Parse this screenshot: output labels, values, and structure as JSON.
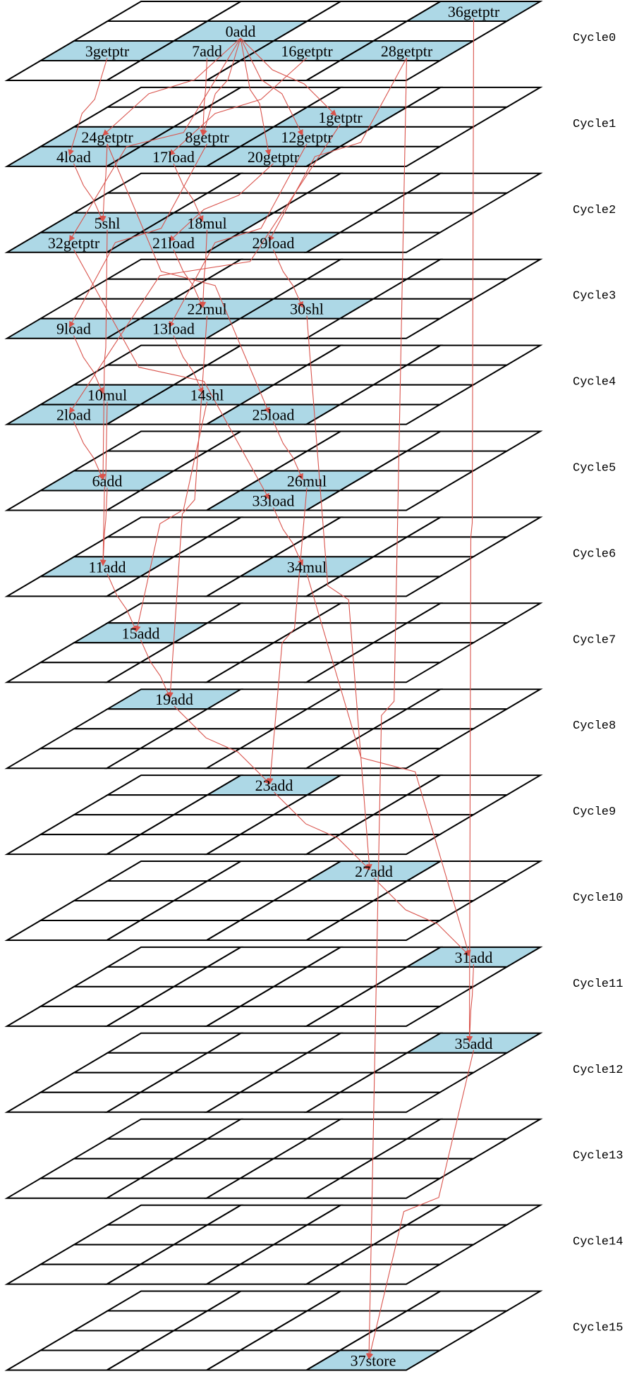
{
  "colors": {
    "occupied": "#add8e6",
    "edge": "#d9544d",
    "grid": "#000000"
  },
  "cycles": [
    {
      "label": "Cycle0",
      "ops": [
        {
          "r": 0,
          "c": 3,
          "label": "36getptr"
        },
        {
          "r": 1,
          "c": 1,
          "label": "0add"
        },
        {
          "r": 2,
          "c": 0,
          "label": "3getptr"
        },
        {
          "r": 2,
          "c": 1,
          "label": "7add"
        },
        {
          "r": 2,
          "c": 2,
          "label": "16getptr"
        },
        {
          "r": 2,
          "c": 3,
          "label": "28getptr"
        }
      ]
    },
    {
      "label": "Cycle1",
      "ops": [
        {
          "r": 1,
          "c": 2,
          "label": "1getptr"
        },
        {
          "r": 2,
          "c": 0,
          "label": "24getptr"
        },
        {
          "r": 2,
          "c": 1,
          "label": "8getptr"
        },
        {
          "r": 2,
          "c": 2,
          "label": "12getptr"
        },
        {
          "r": 3,
          "c": 0,
          "label": "4load"
        },
        {
          "r": 3,
          "c": 1,
          "label": "17load"
        },
        {
          "r": 3,
          "c": 2,
          "label": "20getptr"
        }
      ]
    },
    {
      "label": "Cycle2",
      "ops": [
        {
          "r": 2,
          "c": 0,
          "label": "5shl"
        },
        {
          "r": 2,
          "c": 1,
          "label": "18mul"
        },
        {
          "r": 3,
          "c": 0,
          "label": "32getptr"
        },
        {
          "r": 3,
          "c": 1,
          "label": "21load"
        },
        {
          "r": 3,
          "c": 2,
          "label": "29load"
        }
      ]
    },
    {
      "label": "Cycle3",
      "ops": [
        {
          "r": 2,
          "c": 1,
          "label": "22mul"
        },
        {
          "r": 2,
          "c": 2,
          "label": "30shl"
        },
        {
          "r": 3,
          "c": 0,
          "label": "9load"
        },
        {
          "r": 3,
          "c": 1,
          "label": "13load"
        }
      ]
    },
    {
      "label": "Cycle4",
      "ops": [
        {
          "r": 2,
          "c": 0,
          "label": "10mul"
        },
        {
          "r": 2,
          "c": 1,
          "label": "14shl"
        },
        {
          "r": 3,
          "c": 0,
          "label": "2load"
        },
        {
          "r": 3,
          "c": 2,
          "label": "25load"
        }
      ]
    },
    {
      "label": "Cycle5",
      "ops": [
        {
          "r": 2,
          "c": 0,
          "label": "6add"
        },
        {
          "r": 2,
          "c": 2,
          "label": "26mul"
        },
        {
          "r": 3,
          "c": 2,
          "label": "33load"
        }
      ]
    },
    {
      "label": "Cycle6",
      "ops": [
        {
          "r": 2,
          "c": 0,
          "label": "11add"
        },
        {
          "r": 2,
          "c": 2,
          "label": "34mul"
        }
      ]
    },
    {
      "label": "Cycle7",
      "ops": [
        {
          "r": 1,
          "c": 0,
          "label": "15add"
        }
      ]
    },
    {
      "label": "Cycle8",
      "ops": [
        {
          "r": 0,
          "c": 0,
          "label": "19add"
        }
      ]
    },
    {
      "label": "Cycle9",
      "ops": [
        {
          "r": 0,
          "c": 1,
          "label": "23add"
        }
      ]
    },
    {
      "label": "Cycle10",
      "ops": [
        {
          "r": 0,
          "c": 2,
          "label": "27add"
        }
      ]
    },
    {
      "label": "Cycle11",
      "ops": [
        {
          "r": 0,
          "c": 3,
          "label": "31add"
        }
      ]
    },
    {
      "label": "Cycle12",
      "ops": [
        {
          "r": 0,
          "c": 3,
          "label": "35add"
        }
      ]
    },
    {
      "label": "Cycle13",
      "ops": []
    },
    {
      "label": "Cycle14",
      "ops": []
    },
    {
      "label": "Cycle15",
      "ops": [
        {
          "r": 3,
          "c": 3,
          "label": "37store"
        }
      ]
    }
  ],
  "edges": [
    [
      "0add",
      "1getptr"
    ],
    [
      "0add",
      "8getptr"
    ],
    [
      "0add",
      "12getptr"
    ],
    [
      "0add",
      "20getptr"
    ],
    [
      "0add",
      "24getptr"
    ],
    [
      "3getptr",
      "4load"
    ],
    [
      "7add",
      "8getptr"
    ],
    [
      "16getptr",
      "17load"
    ],
    [
      "28getptr",
      "29load"
    ],
    [
      "24getptr",
      "5shl"
    ],
    [
      "4load",
      "5shl"
    ],
    [
      "8getptr",
      "9load"
    ],
    [
      "1getptr",
      "2load"
    ],
    [
      "12getptr",
      "13load"
    ],
    [
      "17load",
      "18mul"
    ],
    [
      "20getptr",
      "21load"
    ],
    [
      "0add",
      "32getptr"
    ],
    [
      "5shl",
      "6add"
    ],
    [
      "18mul",
      "22mul"
    ],
    [
      "21load",
      "22mul"
    ],
    [
      "29load",
      "30shl"
    ],
    [
      "9load",
      "10mul"
    ],
    [
      "13load",
      "14shl"
    ],
    [
      "2load",
      "6add"
    ],
    [
      "24getptr",
      "25load"
    ],
    [
      "25load",
      "26mul"
    ],
    [
      "32getptr",
      "33load"
    ],
    [
      "33load",
      "34mul"
    ],
    [
      "6add",
      "11add"
    ],
    [
      "10mul",
      "11add"
    ],
    [
      "11add",
      "15add"
    ],
    [
      "14shl",
      "15add"
    ],
    [
      "15add",
      "19add"
    ],
    [
      "22mul",
      "19add"
    ],
    [
      "19add",
      "23add"
    ],
    [
      "26mul",
      "23add"
    ],
    [
      "23add",
      "27add"
    ],
    [
      "30shl",
      "27add"
    ],
    [
      "27add",
      "31add"
    ],
    [
      "34mul",
      "31add"
    ],
    [
      "31add",
      "35add"
    ],
    [
      "36getptr",
      "35add"
    ],
    [
      "35add",
      "37store"
    ],
    [
      "28getptr",
      "37store"
    ]
  ]
}
